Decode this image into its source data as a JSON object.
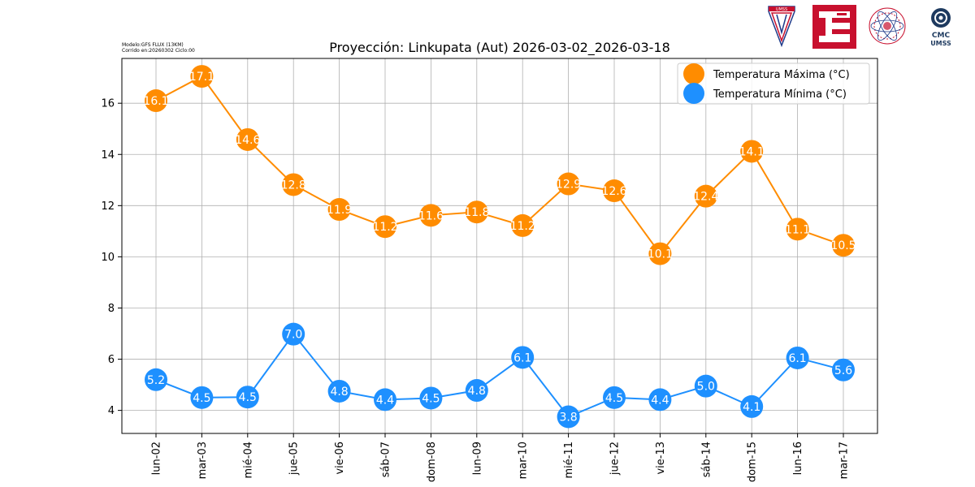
{
  "header": {
    "model_line": "Modelo:GFS FLUX (13KM)",
    "run_line": "Corrido en:20260302 Ciclo:00",
    "logos": [
      {
        "name": "umss-shield-logo",
        "text": "UMSS"
      },
      {
        "name": "red-square-logo"
      },
      {
        "name": "seal-logo"
      },
      {
        "name": "cmc-umss-logo",
        "line1": "CMC",
        "line2": "UMSS"
      }
    ]
  },
  "chart_data": {
    "type": "line",
    "title": "Proyección: Linkupata (Aut) 2026-03-02_2026-03-18",
    "xlabel": "",
    "ylabel": "",
    "categories": [
      "lun-02",
      "mar-03",
      "mié-04",
      "jue-05",
      "vie-06",
      "sáb-07",
      "dom-08",
      "lun-09",
      "mar-10",
      "mié-11",
      "jue-12",
      "vie-13",
      "sáb-14",
      "dom-15",
      "lun-16",
      "mar-17"
    ],
    "ylim": [
      3.1,
      17.75
    ],
    "yticks": [
      4,
      6,
      8,
      10,
      12,
      14,
      16
    ],
    "grid": true,
    "legend_position": "top-right",
    "series": [
      {
        "name": "Temperatura Máxima  (°C)",
        "color": "#ff8c00",
        "values": [
          16.1,
          17.05,
          14.58,
          12.82,
          11.85,
          11.18,
          11.62,
          11.75,
          11.22,
          12.85,
          12.58,
          10.12,
          12.37,
          14.12,
          11.08,
          10.45
        ],
        "labels": [
          "16.1",
          "17.1",
          "14.6",
          "12.8",
          "11.9",
          "11.2",
          "11.6",
          "11.8",
          "11.2",
          "12.9",
          "12.6",
          "10.1",
          "12.4",
          "14.1",
          "11.1",
          "10.5"
        ]
      },
      {
        "name": "Temperatura Mínima  (°C)",
        "color": "#1e90ff",
        "values": [
          5.2,
          4.5,
          4.52,
          6.98,
          4.75,
          4.42,
          4.48,
          4.78,
          6.07,
          3.75,
          4.5,
          4.42,
          4.95,
          4.15,
          6.05,
          5.58
        ],
        "labels": [
          "5.2",
          "4.5",
          "4.5",
          "7.0",
          "4.8",
          "4.4",
          "4.5",
          "4.8",
          "6.1",
          "3.8",
          "4.5",
          "4.4",
          "5.0",
          "4.1",
          "6.1",
          "5.6"
        ]
      }
    ]
  }
}
